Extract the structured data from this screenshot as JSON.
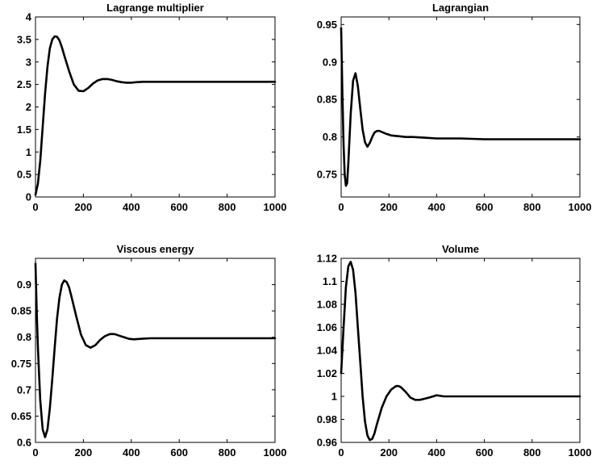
{
  "chart_data": [
    {
      "type": "line",
      "title": "Lagrange multiplier",
      "xlabel": "",
      "ylabel": "",
      "xlim": [
        0,
        1000
      ],
      "ylim": [
        0,
        4
      ],
      "xticks": [
        "0",
        "200",
        "400",
        "600",
        "800",
        "1000"
      ],
      "yticks": [
        "0",
        "0.5",
        "1",
        "1.5",
        "2",
        "2.5",
        "3",
        "3.5",
        "4"
      ],
      "grid": false,
      "series": [
        {
          "x": [
            0,
            10,
            20,
            30,
            40,
            50,
            60,
            70,
            80,
            90,
            100,
            110,
            120,
            140,
            160,
            180,
            200,
            220,
            240,
            260,
            280,
            300,
            320,
            340,
            360,
            380,
            400,
            420,
            450,
            500,
            600,
            700,
            800,
            900,
            1000
          ],
          "y": [
            0.05,
            0.3,
            0.8,
            1.55,
            2.3,
            2.9,
            3.3,
            3.5,
            3.57,
            3.56,
            3.48,
            3.33,
            3.15,
            2.8,
            2.5,
            2.36,
            2.35,
            2.42,
            2.52,
            2.59,
            2.62,
            2.62,
            2.6,
            2.57,
            2.55,
            2.54,
            2.54,
            2.55,
            2.56,
            2.56,
            2.56,
            2.56,
            2.56,
            2.56,
            2.56
          ]
        }
      ]
    },
    {
      "type": "line",
      "title": "Lagrangian",
      "xlabel": "",
      "ylabel": "",
      "xlim": [
        0,
        1000
      ],
      "ylim": [
        0.72,
        0.96
      ],
      "xticks": [
        "0",
        "200",
        "400",
        "600",
        "800",
        "1000"
      ],
      "yticks": [
        "0.75",
        "0.8",
        "0.85",
        "0.9",
        "0.95"
      ],
      "grid": false,
      "series": [
        {
          "x": [
            0,
            5,
            10,
            15,
            20,
            25,
            30,
            40,
            50,
            60,
            70,
            80,
            90,
            100,
            110,
            120,
            130,
            140,
            150,
            160,
            175,
            190,
            210,
            240,
            270,
            300,
            350,
            400,
            500,
            600,
            700,
            800,
            900,
            1000
          ],
          "y": [
            0.945,
            0.86,
            0.79,
            0.75,
            0.735,
            0.738,
            0.765,
            0.83,
            0.875,
            0.885,
            0.868,
            0.838,
            0.81,
            0.793,
            0.787,
            0.792,
            0.8,
            0.806,
            0.808,
            0.808,
            0.806,
            0.804,
            0.802,
            0.801,
            0.8,
            0.8,
            0.799,
            0.798,
            0.798,
            0.797,
            0.797,
            0.797,
            0.797,
            0.797
          ]
        }
      ]
    },
    {
      "type": "line",
      "title": "Viscous energy",
      "xlabel": "",
      "ylabel": "",
      "xlim": [
        0,
        1000
      ],
      "ylim": [
        0.6,
        0.95
      ],
      "xticks": [
        "0",
        "200",
        "400",
        "600",
        "800",
        "1000"
      ],
      "yticks": [
        "0.6",
        "0.65",
        "0.7",
        "0.75",
        "0.8",
        "0.85",
        "0.9"
      ],
      "grid": false,
      "series": [
        {
          "x": [
            0,
            5,
            10,
            20,
            30,
            40,
            50,
            60,
            70,
            80,
            90,
            100,
            110,
            120,
            130,
            140,
            150,
            170,
            190,
            210,
            230,
            250,
            270,
            290,
            310,
            330,
            350,
            370,
            390,
            410,
            440,
            480,
            520,
            600,
            700,
            800,
            900,
            1000
          ],
          "y": [
            0.94,
            0.85,
            0.78,
            0.68,
            0.625,
            0.61,
            0.625,
            0.665,
            0.72,
            0.78,
            0.835,
            0.875,
            0.9,
            0.908,
            0.905,
            0.895,
            0.878,
            0.84,
            0.805,
            0.785,
            0.78,
            0.785,
            0.795,
            0.802,
            0.806,
            0.806,
            0.803,
            0.8,
            0.797,
            0.796,
            0.797,
            0.798,
            0.798,
            0.798,
            0.798,
            0.798,
            0.798,
            0.798
          ]
        }
      ]
    },
    {
      "type": "line",
      "title": "Volume",
      "xlabel": "",
      "ylabel": "",
      "xlim": [
        0,
        1000
      ],
      "ylim": [
        0.96,
        1.12
      ],
      "xticks": [
        "0",
        "200",
        "400",
        "600",
        "800",
        "1000"
      ],
      "yticks": [
        "0.96",
        "0.98",
        "1",
        "1.02",
        "1.04",
        "1.06",
        "1.08",
        "1.1",
        "1.12"
      ],
      "grid": false,
      "series": [
        {
          "x": [
            0,
            5,
            10,
            20,
            30,
            40,
            50,
            60,
            70,
            80,
            90,
            100,
            110,
            120,
            130,
            140,
            150,
            170,
            190,
            210,
            230,
            240,
            250,
            270,
            290,
            310,
            330,
            350,
            370,
            400,
            430,
            460,
            500,
            600,
            700,
            800,
            900,
            1000
          ],
          "y": [
            1.02,
            1.04,
            1.06,
            1.095,
            1.113,
            1.117,
            1.11,
            1.09,
            1.06,
            1.03,
            1.0,
            0.978,
            0.966,
            0.962,
            0.963,
            0.968,
            0.976,
            0.99,
            1.0,
            1.006,
            1.009,
            1.009,
            1.008,
            1.004,
            0.999,
            0.997,
            0.997,
            0.998,
            0.999,
            1.001,
            1.0,
            1.0,
            1.0,
            1.0,
            1.0,
            1.0,
            1.0,
            1.0
          ]
        }
      ]
    }
  ]
}
